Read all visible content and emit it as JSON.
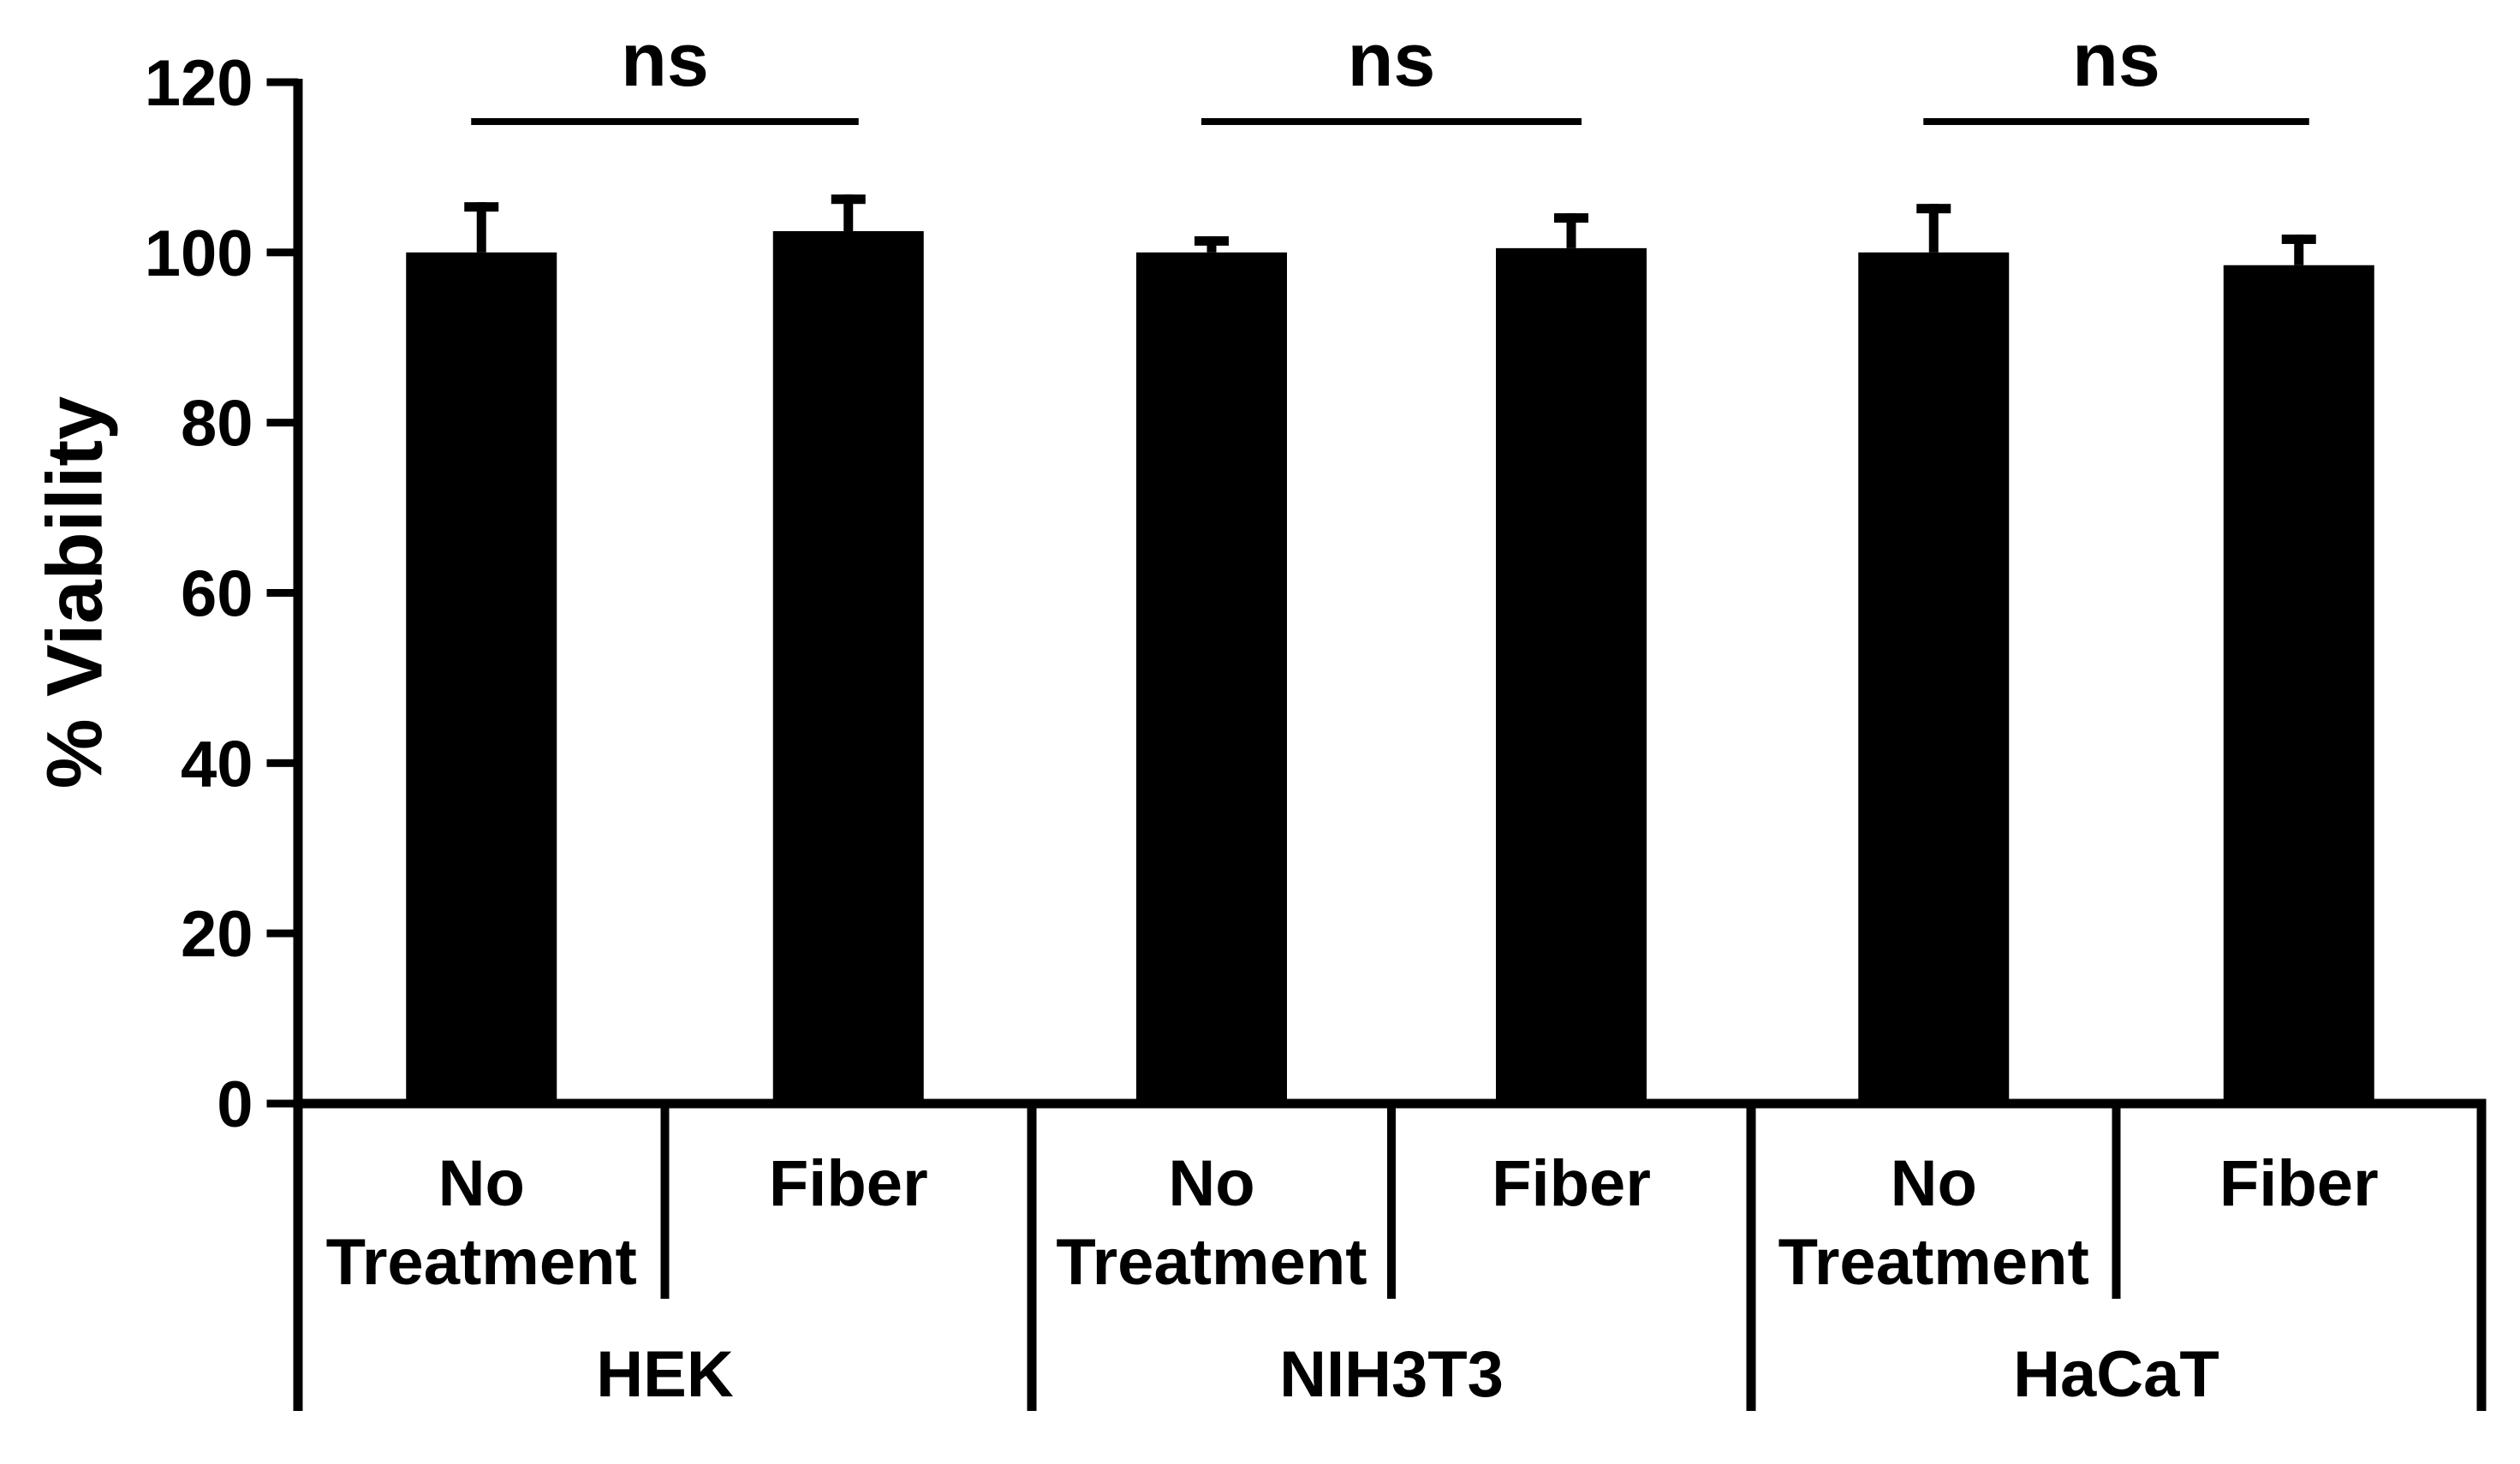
{
  "figure": {
    "background": "#ffffff",
    "bar_color": "#000000",
    "axis_color": "#000000",
    "text_color": "#000000"
  },
  "chart_data": {
    "type": "bar",
    "title": "",
    "ylabel": "% Viability",
    "xlabel": "",
    "ylim": [
      0,
      120
    ],
    "yticks": [
      0,
      20,
      40,
      60,
      80,
      100,
      120
    ],
    "grid": false,
    "legend": "none",
    "error_bars": "upper only, cap style T",
    "groups": [
      {
        "label": "HEK",
        "significance": "ns",
        "bars": [
          {
            "category": "No Treatment",
            "value": 100,
            "error_plus": 5.9
          },
          {
            "category": "Fiber",
            "value": 102.5,
            "error_plus": 4.3
          }
        ]
      },
      {
        "label": "NIH3T3",
        "significance": "ns",
        "bars": [
          {
            "category": "No Treatment",
            "value": 100,
            "error_plus": 1.9
          },
          {
            "category": "Fiber",
            "value": 100.5,
            "error_plus": 4.1
          }
        ]
      },
      {
        "label": "HaCaT",
        "significance": "ns",
        "bars": [
          {
            "category": "No Treatment",
            "value": 100,
            "error_plus": 5.7
          },
          {
            "category": "Fiber",
            "value": 98.5,
            "error_plus": 3.6
          }
        ]
      }
    ]
  }
}
